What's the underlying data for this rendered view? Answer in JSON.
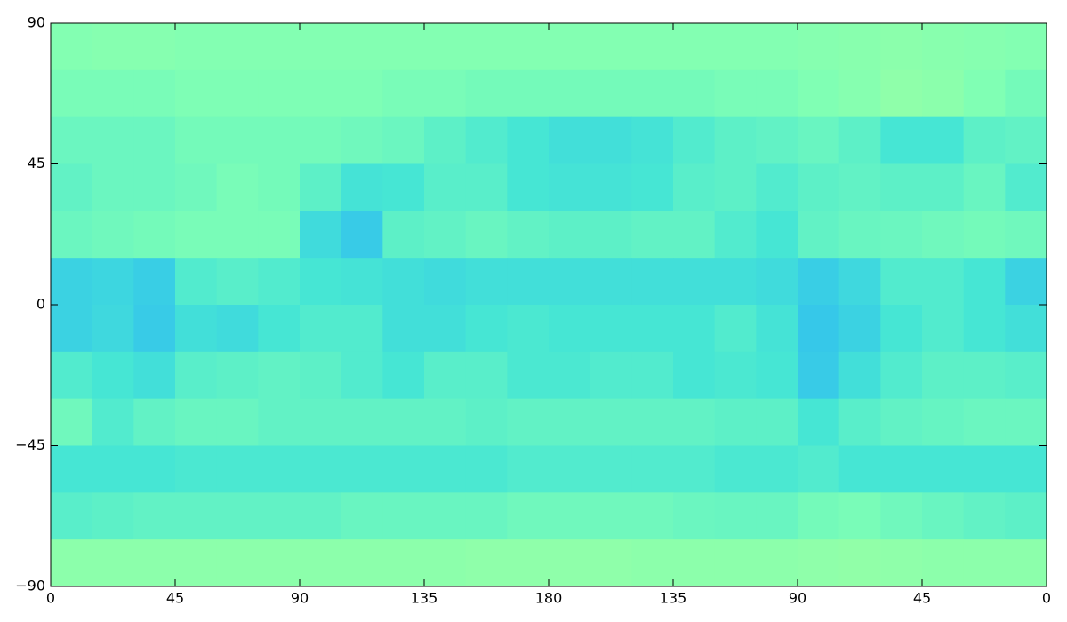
{
  "chart_data": {
    "type": "heatmap",
    "xlim": [
      0,
      360
    ],
    "ylim": [
      -90,
      90
    ],
    "xticks": [
      0,
      45,
      90,
      135,
      180,
      {
        "value": 225,
        "label": "135"
      },
      {
        "value": 270,
        "label": "90"
      },
      {
        "value": 315,
        "label": "45"
      },
      {
        "value": 360,
        "label": "0"
      }
    ],
    "yticks": [
      {
        "value": -90,
        "label": "−90"
      },
      {
        "value": -45,
        "label": "−45"
      },
      0,
      45,
      90
    ],
    "xbins": [
      0,
      15,
      30,
      45,
      60,
      75,
      90,
      105,
      120,
      135,
      150,
      165,
      180,
      195,
      210,
      225,
      240,
      255,
      270,
      285,
      300,
      315,
      330,
      345,
      360
    ],
    "ybins": [
      90,
      75,
      60,
      45,
      30,
      15,
      0,
      -15,
      -30,
      -45,
      -60,
      -75,
      -90
    ],
    "zlim": [
      0,
      1
    ],
    "colormap": [
      "#1e6ff5",
      "#34c4ec",
      "#46e6d4",
      "#80ffb4",
      "#9cffa0"
    ],
    "values": [
      [
        0.78,
        0.8,
        0.8,
        0.78,
        0.78,
        0.78,
        0.78,
        0.78,
        0.78,
        0.78,
        0.78,
        0.78,
        0.78,
        0.78,
        0.78,
        0.78,
        0.78,
        0.78,
        0.8,
        0.82,
        0.85,
        0.82,
        0.8,
        0.78
      ],
      [
        0.72,
        0.72,
        0.72,
        0.74,
        0.74,
        0.74,
        0.74,
        0.74,
        0.72,
        0.72,
        0.7,
        0.7,
        0.7,
        0.7,
        0.7,
        0.7,
        0.72,
        0.72,
        0.75,
        0.8,
        0.88,
        0.85,
        0.75,
        0.7
      ],
      [
        0.66,
        0.66,
        0.66,
        0.7,
        0.7,
        0.7,
        0.7,
        0.68,
        0.66,
        0.6,
        0.55,
        0.5,
        0.45,
        0.45,
        0.48,
        0.55,
        0.6,
        0.62,
        0.65,
        0.6,
        0.5,
        0.5,
        0.6,
        0.62
      ],
      [
        0.62,
        0.66,
        0.66,
        0.68,
        0.72,
        0.7,
        0.6,
        0.48,
        0.5,
        0.58,
        0.58,
        0.5,
        0.48,
        0.48,
        0.5,
        0.58,
        0.6,
        0.55,
        0.6,
        0.62,
        0.6,
        0.6,
        0.65,
        0.55
      ],
      [
        0.66,
        0.68,
        0.7,
        0.72,
        0.72,
        0.72,
        0.42,
        0.3,
        0.6,
        0.62,
        0.65,
        0.62,
        0.6,
        0.6,
        0.62,
        0.62,
        0.55,
        0.5,
        0.62,
        0.65,
        0.66,
        0.68,
        0.7,
        0.68
      ],
      [
        0.35,
        0.38,
        0.32,
        0.55,
        0.58,
        0.55,
        0.5,
        0.48,
        0.45,
        0.42,
        0.45,
        0.45,
        0.45,
        0.45,
        0.45,
        0.45,
        0.45,
        0.42,
        0.32,
        0.4,
        0.55,
        0.55,
        0.5,
        0.35
      ],
      [
        0.35,
        0.4,
        0.3,
        0.45,
        0.42,
        0.5,
        0.55,
        0.55,
        0.45,
        0.45,
        0.5,
        0.52,
        0.5,
        0.5,
        0.5,
        0.5,
        0.55,
        0.48,
        0.28,
        0.35,
        0.5,
        0.55,
        0.5,
        0.45
      ],
      [
        0.55,
        0.5,
        0.45,
        0.58,
        0.6,
        0.62,
        0.6,
        0.55,
        0.5,
        0.58,
        0.58,
        0.52,
        0.52,
        0.55,
        0.55,
        0.5,
        0.52,
        0.5,
        0.3,
        0.45,
        0.55,
        0.6,
        0.6,
        0.58
      ],
      [
        0.68,
        0.55,
        0.62,
        0.65,
        0.65,
        0.62,
        0.62,
        0.62,
        0.62,
        0.62,
        0.6,
        0.62,
        0.62,
        0.62,
        0.62,
        0.62,
        0.6,
        0.6,
        0.5,
        0.58,
        0.62,
        0.64,
        0.66,
        0.66
      ],
      [
        0.5,
        0.5,
        0.5,
        0.52,
        0.52,
        0.52,
        0.52,
        0.52,
        0.52,
        0.52,
        0.52,
        0.55,
        0.55,
        0.55,
        0.55,
        0.55,
        0.52,
        0.52,
        0.55,
        0.5,
        0.5,
        0.5,
        0.5,
        0.5
      ],
      [
        0.58,
        0.6,
        0.62,
        0.62,
        0.62,
        0.62,
        0.62,
        0.65,
        0.65,
        0.65,
        0.65,
        0.68,
        0.68,
        0.68,
        0.68,
        0.66,
        0.65,
        0.65,
        0.7,
        0.72,
        0.68,
        0.65,
        0.62,
        0.6
      ],
      [
        0.86,
        0.86,
        0.86,
        0.86,
        0.86,
        0.86,
        0.86,
        0.86,
        0.86,
        0.86,
        0.88,
        0.88,
        0.88,
        0.88,
        0.86,
        0.86,
        0.86,
        0.86,
        0.88,
        0.9,
        0.88,
        0.86,
        0.86,
        0.86
      ]
    ]
  }
}
